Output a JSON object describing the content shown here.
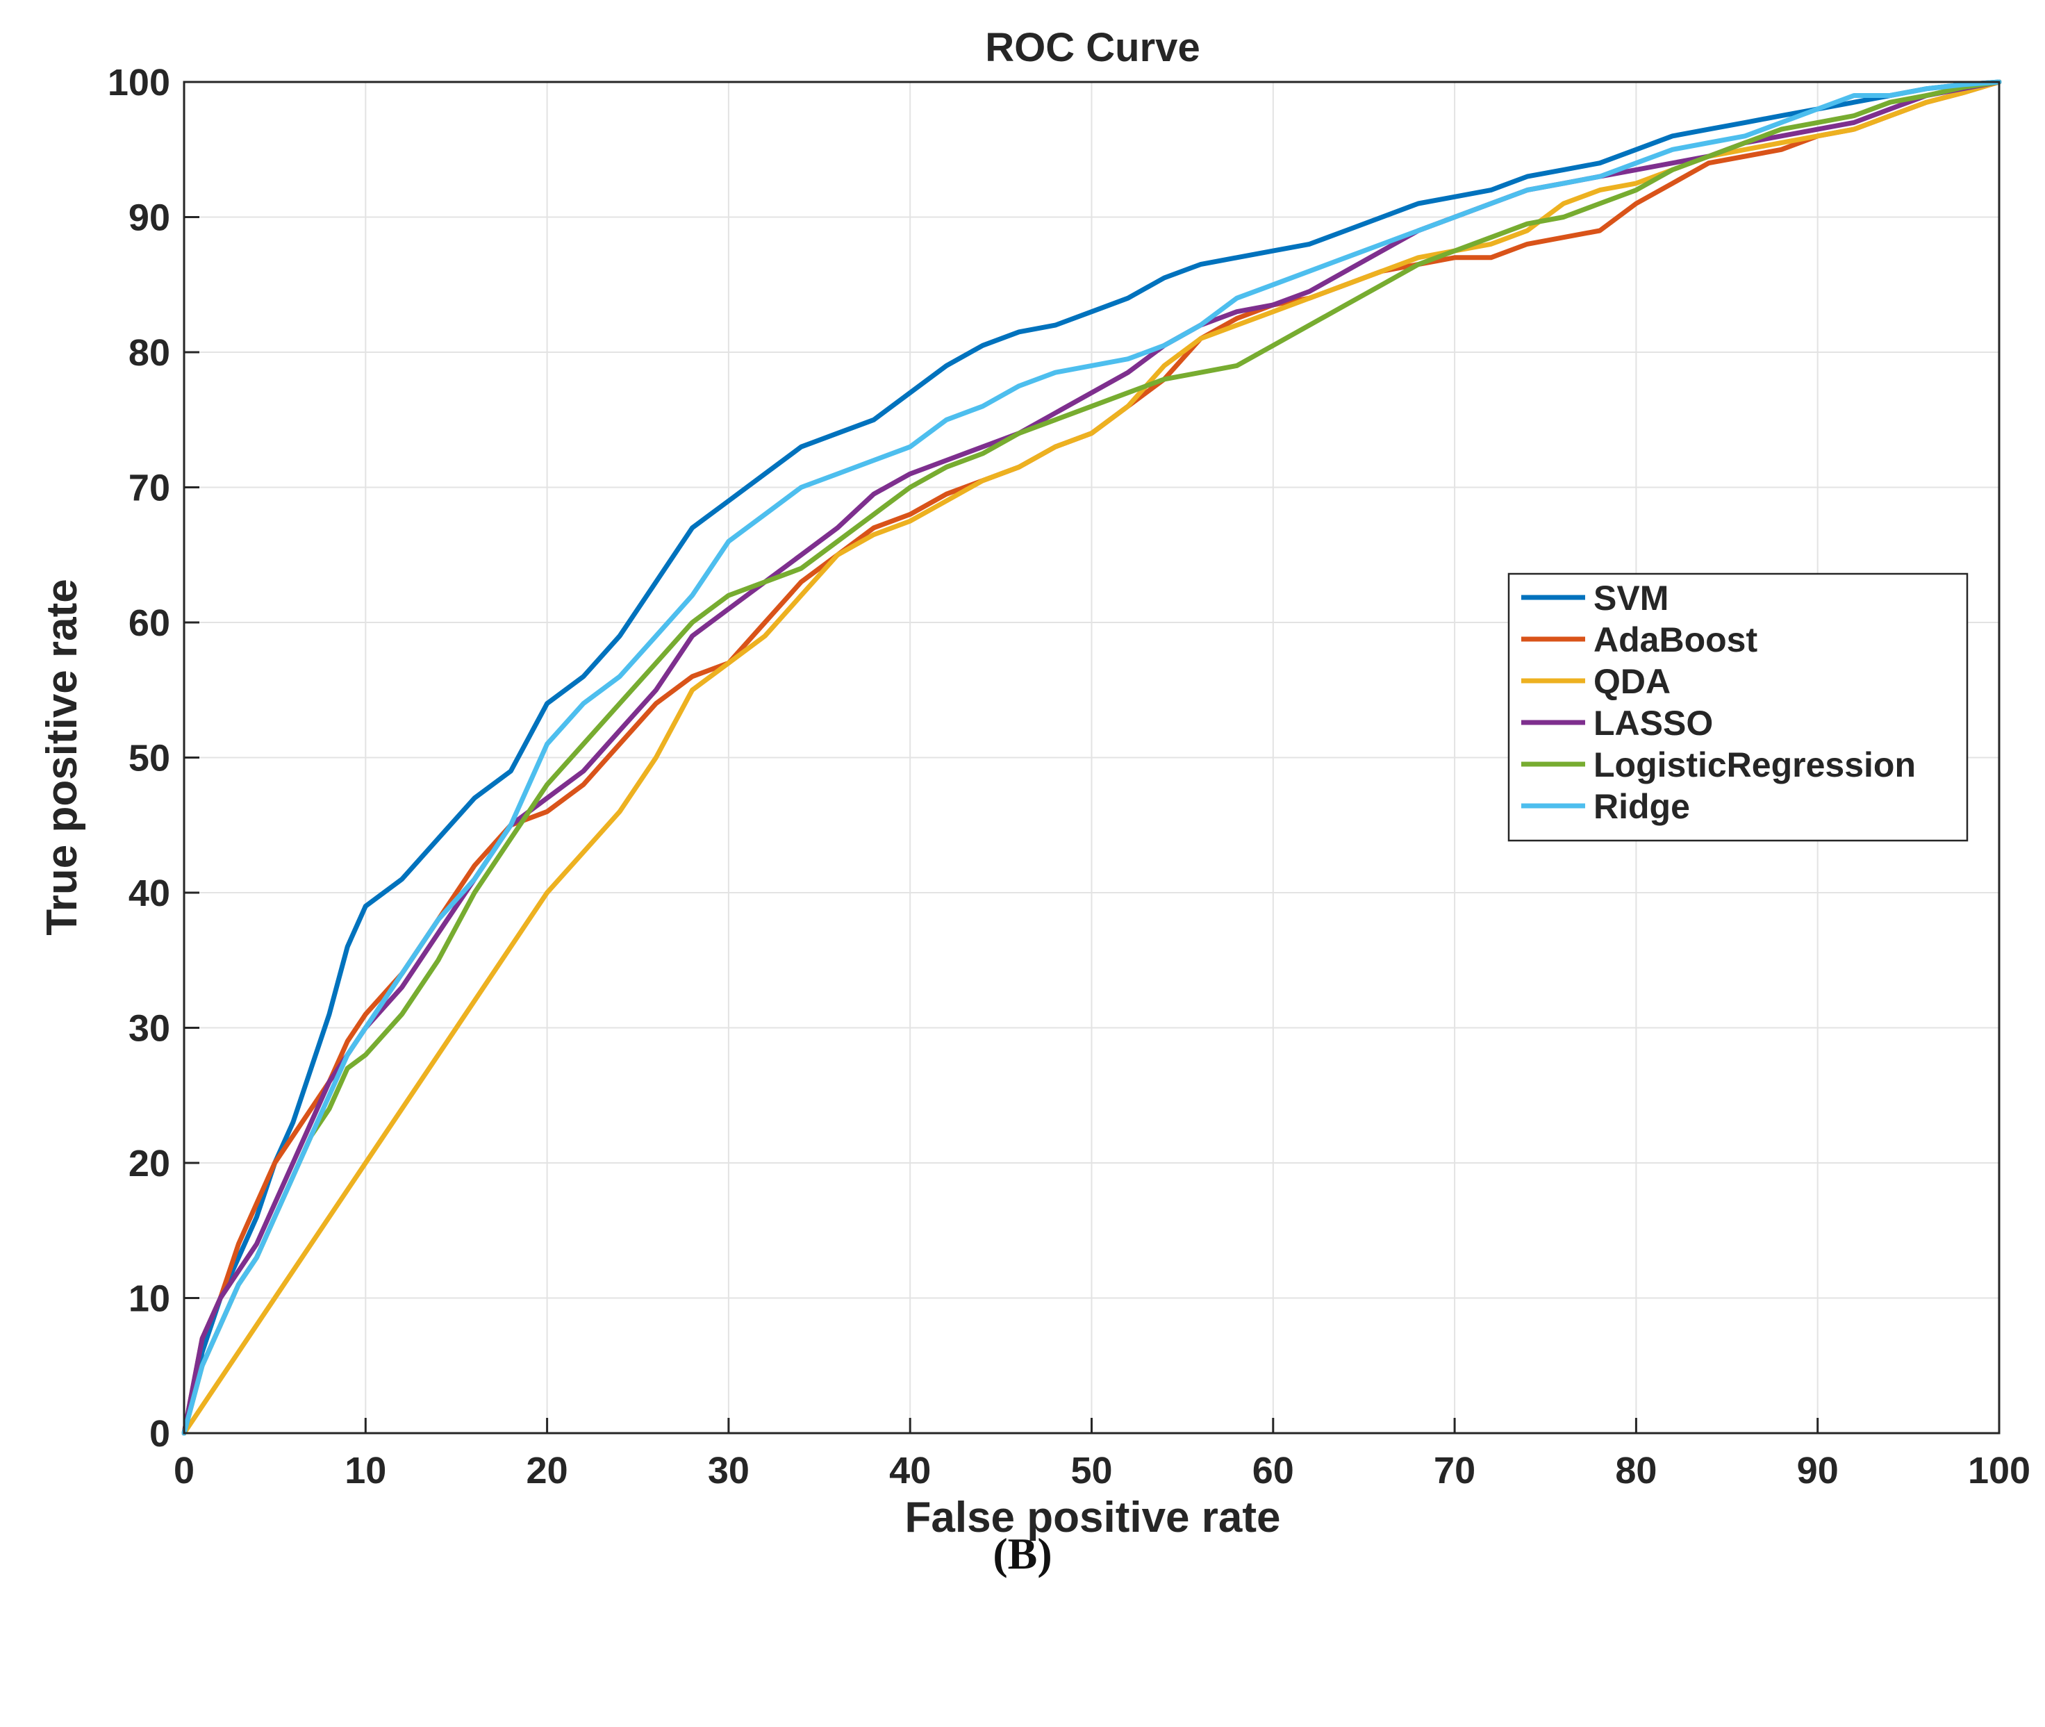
{
  "caption": "(B)",
  "chart_data": {
    "type": "line",
    "title": "ROC Curve",
    "xlabel": "False positive rate",
    "ylabel": "True positive rate",
    "xlim": [
      0,
      100
    ],
    "ylim": [
      0,
      100
    ],
    "xticks": [
      0,
      10,
      20,
      30,
      40,
      50,
      60,
      70,
      80,
      90,
      100
    ],
    "yticks": [
      0,
      10,
      20,
      30,
      40,
      50,
      60,
      70,
      80,
      90,
      100
    ],
    "grid": true,
    "legend_position": "right",
    "series": [
      {
        "name": "SVM",
        "color": "#0072bd",
        "x": [
          0,
          1,
          2,
          3,
          4,
          5,
          6,
          7,
          8,
          9,
          10,
          12,
          14,
          16,
          18,
          20,
          22,
          24,
          26,
          28,
          30,
          32,
          34,
          36,
          38,
          40,
          42,
          44,
          46,
          48,
          50,
          52,
          54,
          56,
          58,
          60,
          62,
          64,
          66,
          68,
          70,
          72,
          74,
          76,
          78,
          80,
          82,
          84,
          86,
          88,
          90,
          92,
          94,
          96,
          98,
          100
        ],
        "y": [
          0,
          6,
          10,
          13,
          16,
          20,
          23,
          27,
          31,
          36,
          39,
          41,
          44,
          47,
          49,
          54,
          56,
          59,
          63,
          67,
          69,
          71,
          73,
          74,
          75,
          77,
          79,
          80.5,
          81.5,
          82,
          83,
          84,
          85.5,
          86.5,
          87,
          87.5,
          88,
          89,
          90,
          91,
          91.5,
          92,
          93,
          93.5,
          94,
          95,
          96,
          96.5,
          97,
          97.5,
          98,
          98.5,
          99,
          99.5,
          99.8,
          100
        ]
      },
      {
        "name": "AdaBoost",
        "color": "#d95319",
        "x": [
          0,
          1,
          2,
          3,
          4,
          5,
          6,
          7,
          8,
          9,
          10,
          12,
          14,
          16,
          18,
          20,
          22,
          24,
          26,
          28,
          30,
          32,
          34,
          36,
          38,
          40,
          42,
          44,
          46,
          48,
          50,
          52,
          54,
          56,
          58,
          60,
          62,
          64,
          66,
          68,
          70,
          72,
          74,
          76,
          78,
          80,
          82,
          84,
          86,
          88,
          90,
          92,
          94,
          96,
          98,
          100
        ],
        "y": [
          0,
          7,
          10,
          14,
          17,
          20,
          22,
          24,
          26,
          29,
          31,
          34,
          38,
          42,
          45,
          46,
          48,
          51,
          54,
          56,
          57,
          60,
          63,
          65,
          67,
          68,
          69.5,
          70.5,
          71.5,
          73,
          74,
          76,
          78,
          81,
          82.5,
          83.5,
          84,
          85,
          86,
          86.5,
          87,
          87,
          88,
          88.5,
          89,
          91,
          92.5,
          94,
          94.5,
          95,
          96,
          96.5,
          97.5,
          98.5,
          99.2,
          100
        ]
      },
      {
        "name": "QDA",
        "color": "#edb120",
        "x": [
          0,
          5,
          10,
          15,
          20,
          22,
          24,
          26,
          28,
          30,
          32,
          34,
          36,
          38,
          40,
          42,
          44,
          46,
          48,
          50,
          52,
          54,
          56,
          58,
          60,
          62,
          64,
          66,
          68,
          70,
          72,
          74,
          76,
          78,
          80,
          82,
          84,
          86,
          88,
          90,
          92,
          94,
          96,
          98,
          100
        ],
        "y": [
          0,
          10,
          20,
          30,
          40,
          43,
          46,
          50,
          55,
          57,
          59,
          62,
          65,
          66.5,
          67.5,
          69,
          70.5,
          71.5,
          73,
          74,
          76,
          79,
          81,
          82,
          83,
          84,
          85,
          86,
          87,
          87.5,
          88,
          89,
          91,
          92,
          92.5,
          93.5,
          94.5,
          95,
          95.5,
          96,
          96.5,
          97.5,
          98.5,
          99.2,
          100
        ]
      },
      {
        "name": "LASSO",
        "color": "#7e2f8e",
        "x": [
          0,
          1,
          2,
          3,
          4,
          5,
          6,
          7,
          8,
          9,
          10,
          12,
          14,
          16,
          18,
          20,
          22,
          24,
          26,
          28,
          30,
          32,
          34,
          36,
          38,
          40,
          42,
          44,
          46,
          48,
          50,
          52,
          54,
          56,
          58,
          60,
          62,
          64,
          66,
          68,
          70,
          72,
          74,
          76,
          78,
          80,
          82,
          84,
          86,
          88,
          90,
          92,
          94,
          96,
          98,
          100
        ],
        "y": [
          0,
          7,
          10,
          12,
          14,
          17,
          20,
          23,
          26,
          28,
          30,
          33,
          37,
          41,
          45,
          47,
          49,
          52,
          55,
          59,
          61,
          63,
          65,
          67,
          69.5,
          71,
          72,
          73,
          74,
          75.5,
          77,
          78.5,
          80.5,
          82,
          83,
          83.5,
          84.5,
          86,
          87.5,
          89,
          90,
          91,
          92,
          92.5,
          93,
          93.5,
          94,
          94.5,
          95.5,
          96,
          96.5,
          97,
          98,
          99,
          99.5,
          100
        ]
      },
      {
        "name": "LogisticRegression",
        "color": "#77ac30",
        "x": [
          0,
          1,
          2,
          3,
          4,
          5,
          6,
          7,
          8,
          9,
          10,
          12,
          14,
          16,
          18,
          20,
          22,
          24,
          26,
          28,
          30,
          32,
          34,
          36,
          38,
          40,
          42,
          44,
          46,
          48,
          50,
          52,
          54,
          56,
          58,
          60,
          62,
          64,
          66,
          68,
          70,
          72,
          74,
          76,
          78,
          80,
          82,
          84,
          86,
          88,
          90,
          92,
          94,
          96,
          98,
          100
        ],
        "y": [
          0,
          5,
          8,
          11,
          13,
          16,
          19,
          22,
          24,
          27,
          28,
          31,
          35,
          40,
          44,
          48,
          51,
          54,
          57,
          60,
          62,
          63,
          64,
          66,
          68,
          70,
          71.5,
          72.5,
          74,
          75,
          76,
          77,
          78,
          78.5,
          79,
          80.5,
          82,
          83.5,
          85,
          86.5,
          87.5,
          88.5,
          89.5,
          90,
          91,
          92,
          93.5,
          94.5,
          95.5,
          96.5,
          97,
          97.5,
          98.5,
          99,
          99.6,
          100
        ]
      },
      {
        "name": "Ridge",
        "color": "#4dbeee",
        "x": [
          0,
          1,
          2,
          3,
          4,
          5,
          6,
          7,
          8,
          9,
          10,
          12,
          14,
          16,
          18,
          20,
          22,
          24,
          26,
          28,
          30,
          32,
          34,
          36,
          38,
          40,
          42,
          44,
          46,
          48,
          50,
          52,
          54,
          56,
          58,
          60,
          62,
          64,
          66,
          68,
          70,
          72,
          74,
          76,
          78,
          80,
          82,
          84,
          86,
          88,
          90,
          92,
          94,
          96,
          98,
          100
        ],
        "y": [
          0,
          5,
          8,
          11,
          13,
          16,
          19,
          22,
          25,
          28,
          30,
          34,
          38,
          41,
          45,
          51,
          54,
          56,
          59,
          62,
          66,
          68,
          70,
          71,
          72,
          73,
          75,
          76,
          77.5,
          78.5,
          79,
          79.5,
          80.5,
          82,
          84,
          85,
          86,
          87,
          88,
          89,
          90,
          91,
          92,
          92.5,
          93,
          94,
          95,
          95.5,
          96,
          97,
          98,
          99,
          99,
          99.5,
          99.8,
          100
        ]
      }
    ]
  }
}
